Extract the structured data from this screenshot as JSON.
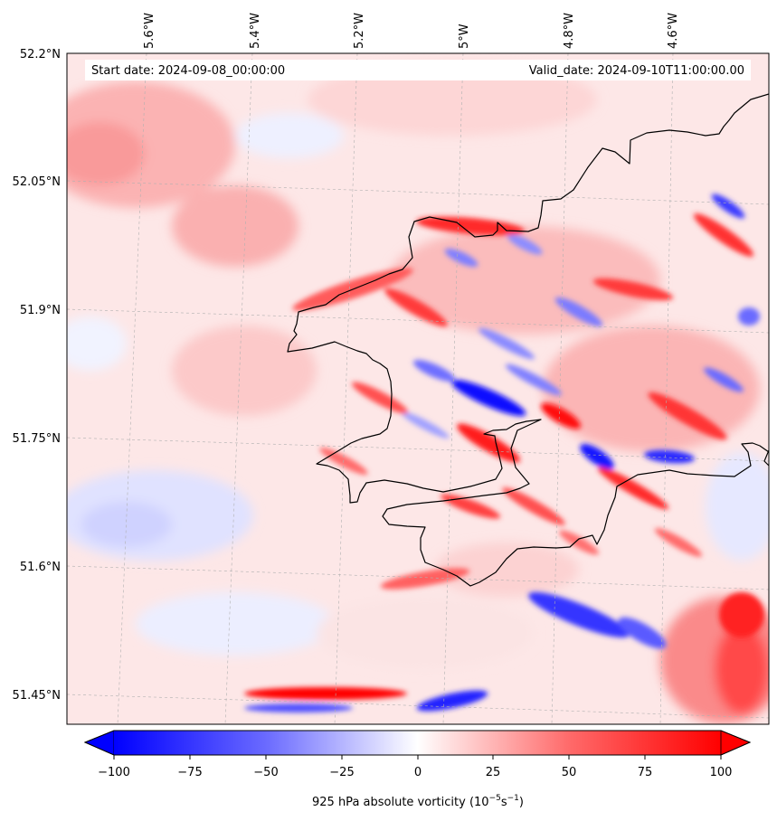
{
  "map": {
    "start_text": "Start date: 2024-09-08_00:00:00",
    "valid_text": "Valid_date: 2024-09-10T11:00:00.00",
    "lon_labels": [
      "5.6°W",
      "5.4°W",
      "5.2°W",
      "5°W",
      "4.8°W",
      "4.6°W"
    ],
    "lat_labels": [
      "52.2°N",
      "52.05°N",
      "51.9°N",
      "51.75°N",
      "51.6°N",
      "51.45°N"
    ]
  },
  "colorbar": {
    "ticks": [
      "−100",
      "−75",
      "−50",
      "−25",
      "0",
      "25",
      "50",
      "75",
      "100"
    ],
    "range": [
      -100,
      100
    ],
    "label_main": "925 hPa absolute vorticity (10",
    "label_exp1": "−5",
    "label_mid": "s",
    "label_exp2": "−1",
    "label_end": ")",
    "colors": {
      "negative": "#0000ff",
      "zero": "#ffffff",
      "positive": "#ff0000"
    }
  },
  "colors": {
    "coastline": "#000000",
    "gridline": "#b0b0b0"
  }
}
